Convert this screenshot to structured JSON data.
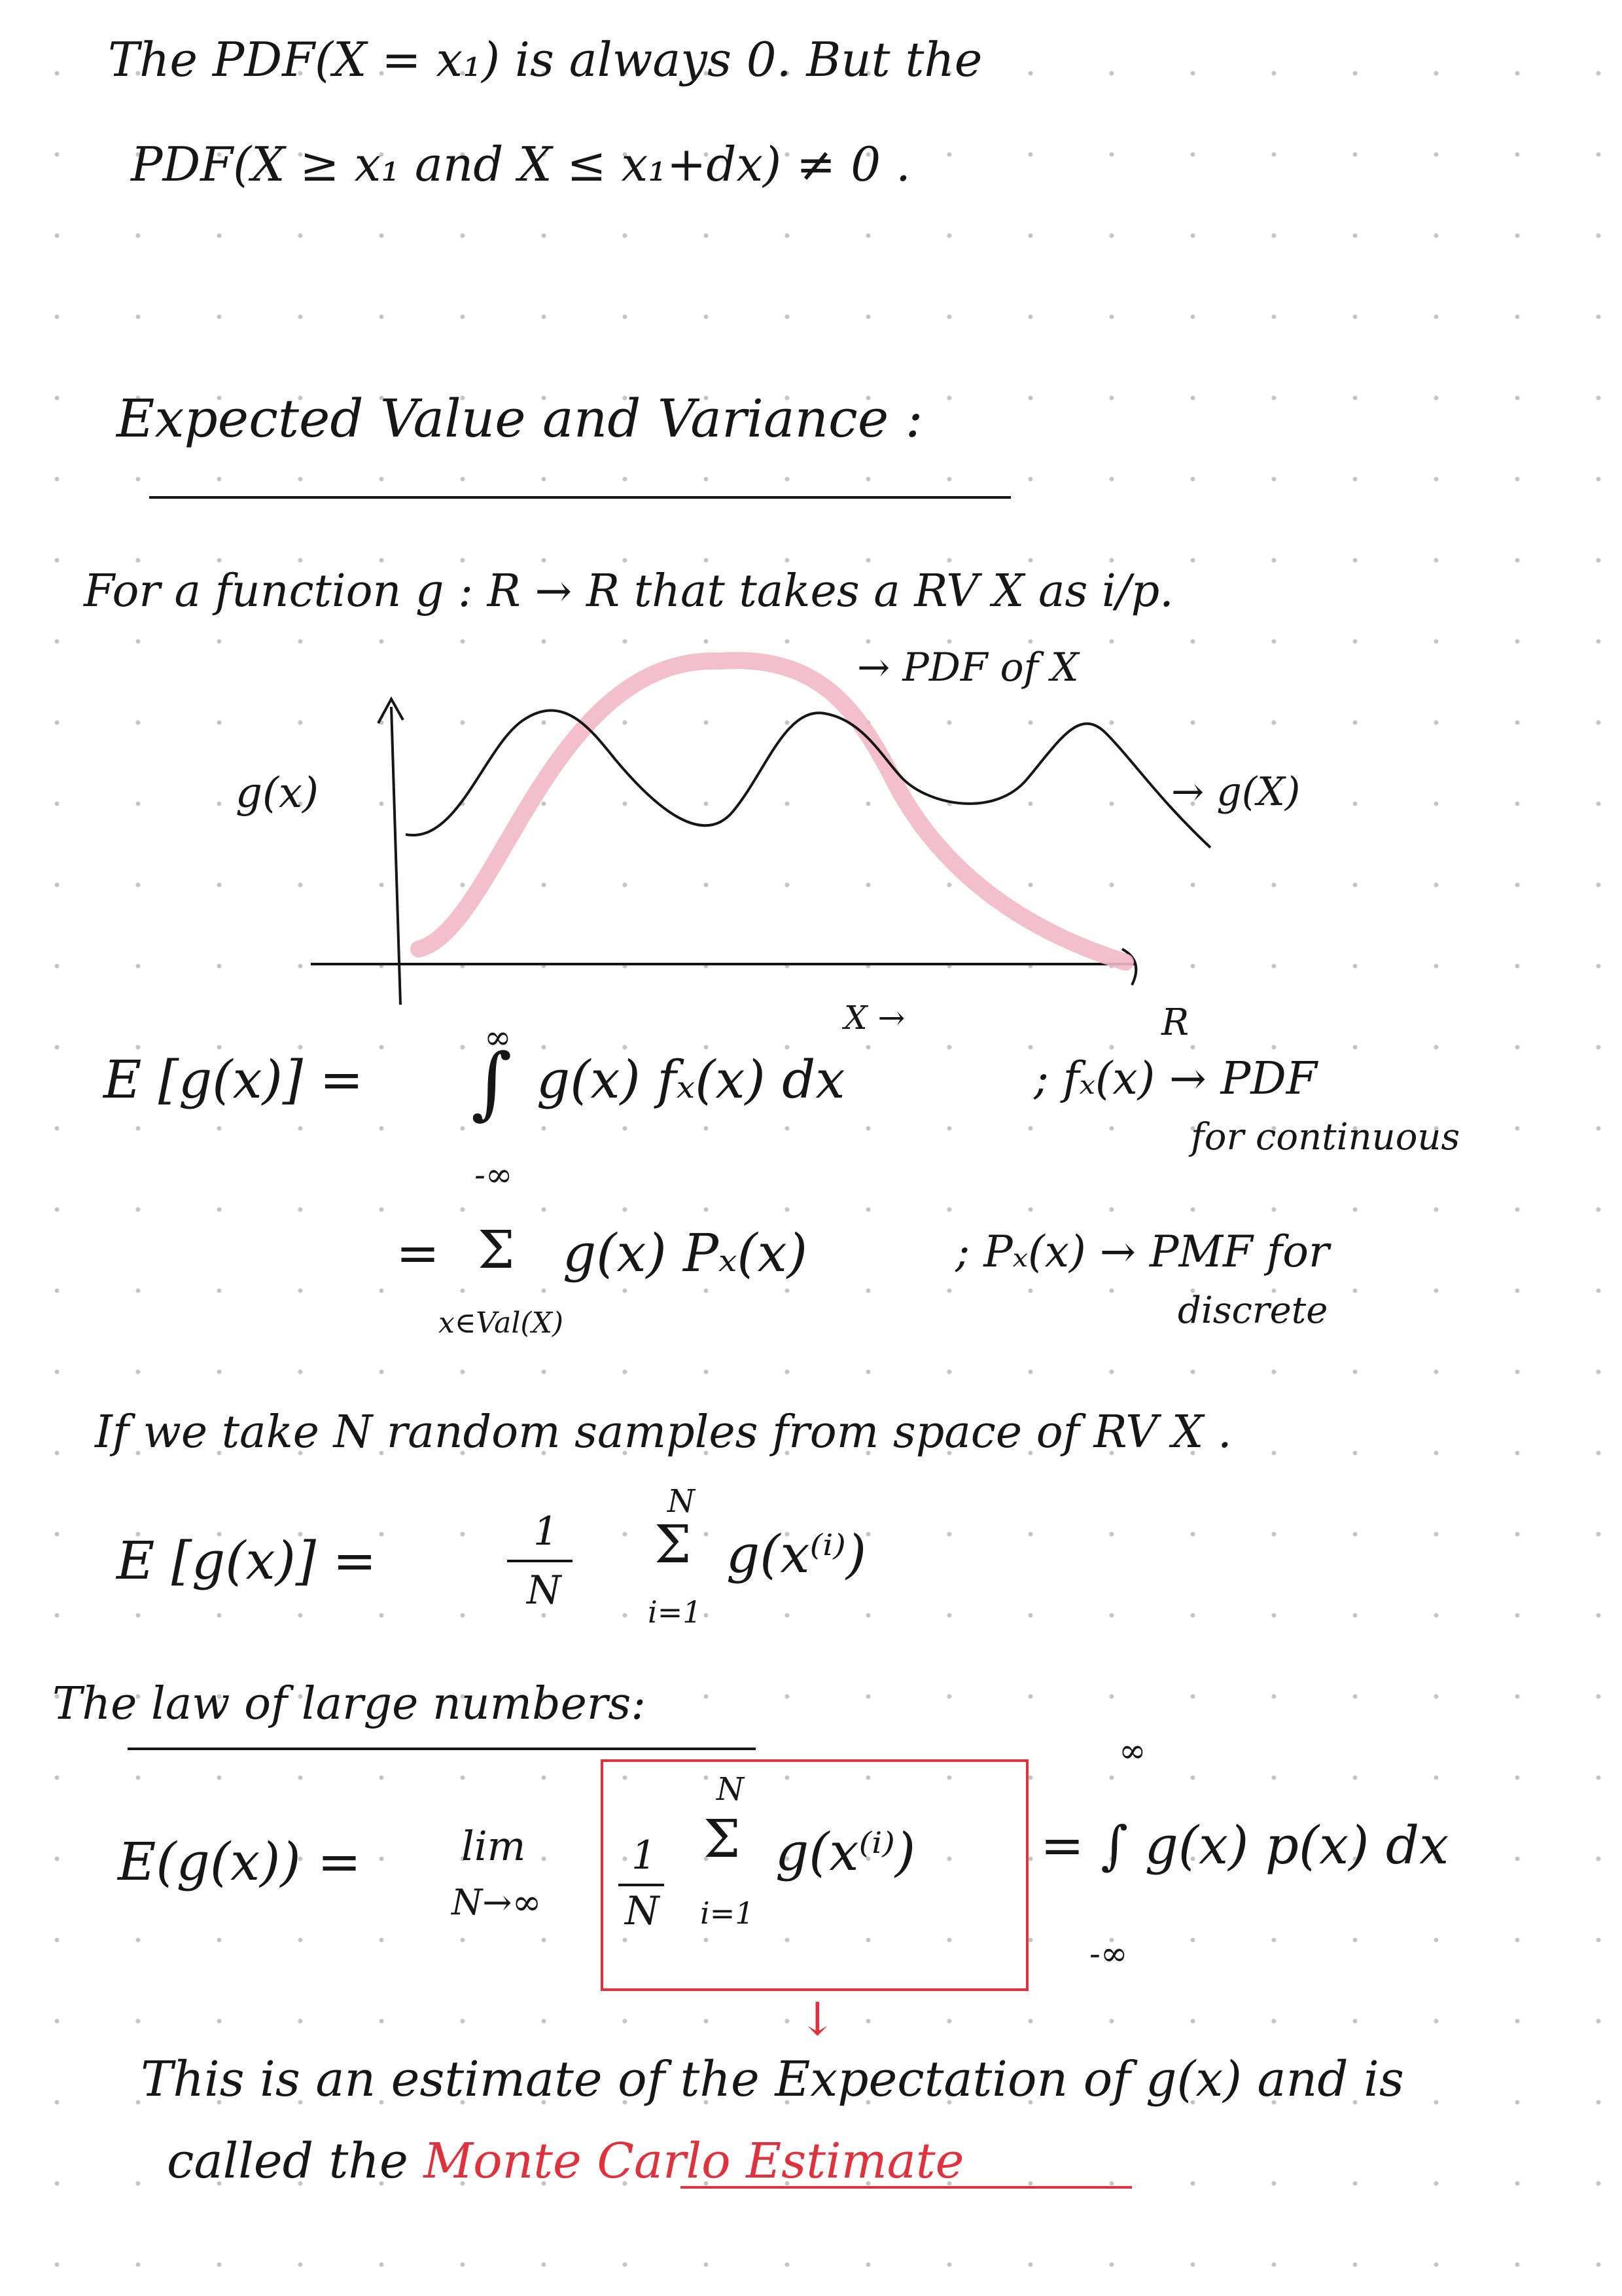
{
  "line1": "The PDF(X = x₁) is always 0. But the",
  "line2": "PDF(X ≥ x₁ and X ≤ x₁+dx) ≠ 0 .",
  "heading": "Expected Value and Variance :",
  "func_line": "For a function g : R → R that takes a RV X as i/p.",
  "graph": {
    "y_label": "g(x)",
    "pdf_annotation": "→ PDF of X",
    "g_annotation": "→ g(X)",
    "x_label": "X →",
    "r_label": "R"
  },
  "cont": {
    "lhs": "E [g(x)] =",
    "int_upper": "∞",
    "int_lower": "-∞",
    "integrand": "g(x) fₓ(x) dx",
    "note": "; fₓ(x) → PDF",
    "note2": "for continuous"
  },
  "disc": {
    "eq": "=",
    "sigma": "Σ",
    "sum_sub": "x∈Val(X)",
    "summand": "g(x) Pₓ(x)",
    "note": "; Pₓ(x) → PMF for",
    "note2": "discrete"
  },
  "samples_line": "If we take N random samples from space of RV X .",
  "sample_mean": {
    "lhs": "E [g(x)] =",
    "num": "1",
    "den": "N",
    "sum_upper": "N",
    "sigma": "Σ",
    "sum_lower": "i=1",
    "summand": "g(x⁽ⁱ⁾)"
  },
  "lln_heading": "The law of large numbers:",
  "lln": {
    "lhs": "E(g(x)) =",
    "lim": "lim",
    "lim_sub": "N→∞",
    "num": "1",
    "den": "N",
    "sum_upper": "N",
    "sigma": "Σ",
    "sum_lower": "i=1",
    "summand": "g(x⁽ⁱ⁾)",
    "rhs": "= ∫ g(x) p(x) dx",
    "int_upper": "∞",
    "int_lower": "-∞"
  },
  "arrow_down": "↓",
  "conclusion1": "This is an estimate of the Expectation of g(x) and is",
  "conclusion2_prefix": "called the",
  "conclusion2_highlight": "Monte Carlo Estimate",
  "colors": {
    "ink": "#161616",
    "red": "#e0323d",
    "pdf_curve": "#f2b8c8",
    "dot_grid": "#c4c4c4"
  }
}
